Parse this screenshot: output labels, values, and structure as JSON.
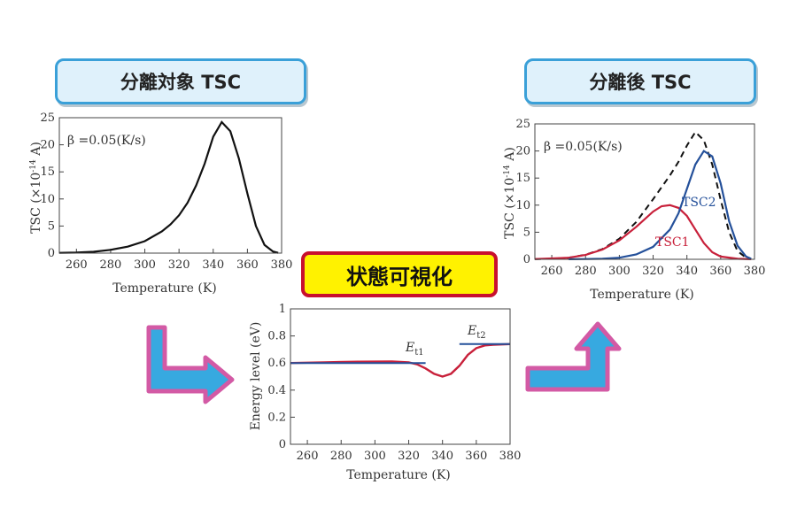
{
  "labels": {
    "title_left": "分離対象 TSC",
    "title_right": "分離後 TSC",
    "badge": "状態可視化"
  },
  "colors": {
    "black_curve": "#111111",
    "red": "#c8203a",
    "blue": "#24509a",
    "pill_border": "#3aa0d8",
    "pill_fill": "#dff1fb",
    "badge_fill": "#fff200",
    "badge_border": "#c8102e",
    "arrow_fill": "#37a9e0",
    "arrow_border": "#d35aa5"
  },
  "chart_data": [
    {
      "type": "line",
      "xlabel": "Temperature (K)",
      "ylabel_main": "TSC (×10",
      "ylabel_sup": "-14",
      "ylabel_end": " A)",
      "annotation": "β =0.05(K/s)",
      "xlim": [
        250,
        380
      ],
      "ylim": [
        0,
        25
      ],
      "xticks": [
        260,
        280,
        300,
        320,
        340,
        360,
        380
      ],
      "yticks": [
        0,
        5,
        10,
        15,
        20,
        25
      ],
      "series": [
        {
          "x": [
            250,
            260,
            270,
            280,
            290,
            300,
            310,
            315,
            320,
            325,
            330,
            335,
            340,
            345,
            350,
            355,
            360,
            365,
            370,
            375,
            378
          ],
          "y": [
            0.05,
            0.1,
            0.25,
            0.6,
            1.2,
            2.2,
            4.0,
            5.3,
            7.0,
            9.3,
            12.5,
            16.5,
            21.5,
            24.2,
            22.5,
            17.5,
            11,
            5,
            1.5,
            0.3,
            0.05
          ]
        }
      ]
    },
    {
      "type": "line",
      "xlabel": "Temperature (K)",
      "ylabel_main": "Energy level (eV)",
      "xlim": [
        250,
        380
      ],
      "ylim": [
        0,
        1
      ],
      "xticks": [
        260,
        280,
        300,
        320,
        340,
        360,
        380
      ],
      "yticks": [
        0,
        0.2,
        0.4,
        0.6,
        0.8,
        1
      ],
      "annotations": [
        {
          "base": "E",
          "sub": "t1"
        },
        {
          "base": "E",
          "sub": "t2"
        }
      ],
      "series": [
        {
          "x": [
            250,
            270,
            290,
            310,
            320,
            325,
            330,
            335,
            340,
            345,
            350,
            355,
            360,
            365,
            370,
            380
          ],
          "y": [
            0.6,
            0.605,
            0.61,
            0.612,
            0.605,
            0.59,
            0.56,
            0.52,
            0.5,
            0.52,
            0.58,
            0.66,
            0.71,
            0.73,
            0.735,
            0.74
          ]
        },
        {
          "x": [
            250,
            330
          ],
          "y": [
            0.6,
            0.6
          ]
        },
        {
          "x": [
            350,
            380
          ],
          "y": [
            0.74,
            0.74
          ]
        }
      ]
    },
    {
      "type": "line",
      "xlabel": "Temperature (K)",
      "ylabel_main": "TSC (×10",
      "ylabel_sup": "-14",
      "ylabel_end": " A)",
      "annotation": "β =0.05(K/s)",
      "xlim": [
        250,
        380
      ],
      "ylim": [
        0,
        25
      ],
      "xticks": [
        260,
        280,
        300,
        320,
        340,
        360,
        380
      ],
      "yticks": [
        0,
        5,
        10,
        15,
        20,
        25
      ],
      "series": [
        {
          "name": "TSC1",
          "x": [
            250,
            270,
            280,
            290,
            300,
            310,
            320,
            325,
            330,
            335,
            340,
            345,
            350,
            355,
            360,
            370,
            378
          ],
          "y": [
            0.05,
            0.3,
            0.8,
            1.8,
            3.5,
            6,
            8.8,
            9.8,
            10,
            9.5,
            8,
            5.5,
            3,
            1.3,
            0.5,
            0.1,
            0.02
          ]
        },
        {
          "name": "TSC2",
          "x": [
            270,
            280,
            290,
            300,
            310,
            320,
            330,
            335,
            340,
            345,
            350,
            355,
            360,
            365,
            370,
            375,
            378
          ],
          "y": [
            0.02,
            0.05,
            0.1,
            0.3,
            0.9,
            2.3,
            5.5,
            8.5,
            13,
            17.5,
            20,
            19,
            14,
            7,
            2.5,
            0.5,
            0.1
          ]
        },
        {
          "x": [
            250,
            260,
            270,
            280,
            290,
            300,
            310,
            320,
            330,
            335,
            340,
            345,
            350,
            355,
            360,
            365,
            370,
            375,
            378
          ],
          "y": [
            0.05,
            0.1,
            0.3,
            0.85,
            1.9,
            3.8,
            6.9,
            11.1,
            15.5,
            18,
            21,
            23.5,
            22,
            17.5,
            11,
            5,
            1.5,
            0.3,
            0.05
          ]
        }
      ]
    }
  ]
}
